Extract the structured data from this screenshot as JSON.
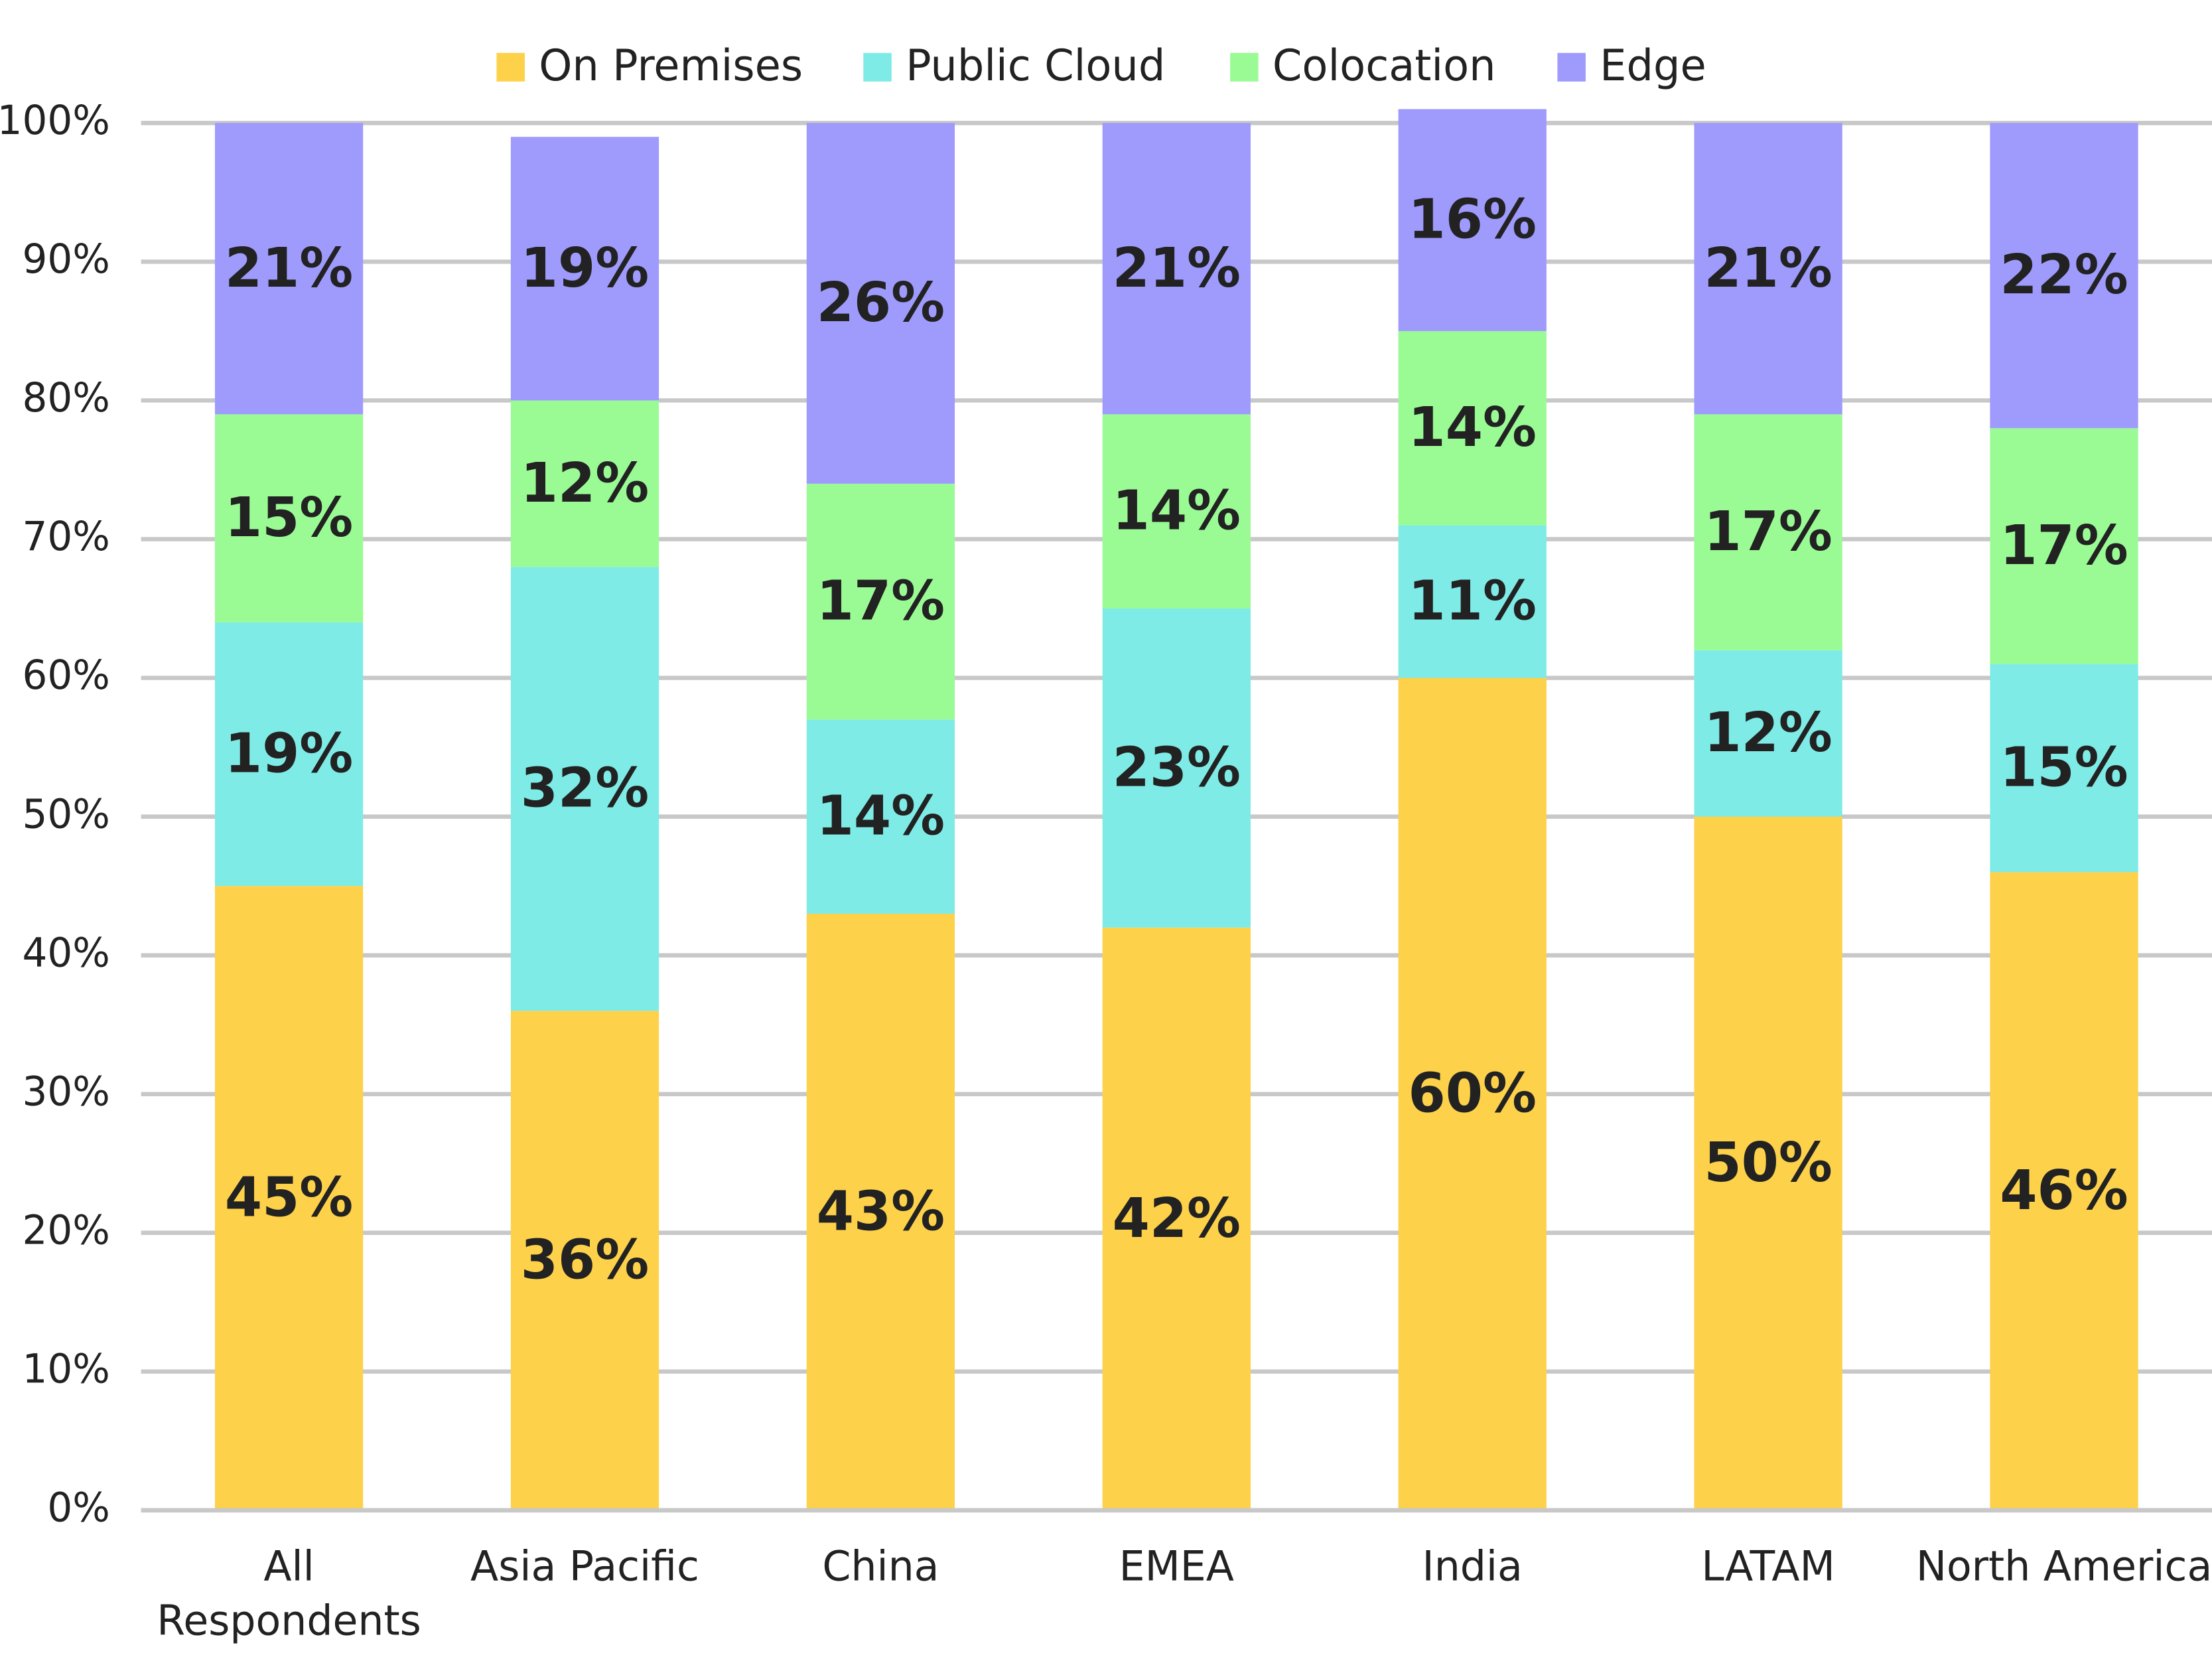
{
  "chart_data": {
    "type": "stacked_bar",
    "categories": [
      "All Respondents",
      "Asia Pacific",
      "China",
      "EMEA",
      "India",
      "LATAM",
      "North America"
    ],
    "series": [
      {
        "name": "On Premises",
        "color": "#fdd14a",
        "values": [
          45,
          36,
          43,
          42,
          60,
          50,
          46
        ],
        "value_labels": [
          "45%",
          "36%",
          "43%",
          "42%",
          "60%",
          "50%",
          "46%"
        ]
      },
      {
        "name": "Public Cloud",
        "color": "#7eebe6",
        "values": [
          19,
          32,
          14,
          23,
          11,
          12,
          15
        ],
        "value_labels": [
          "19%",
          "32%",
          "14%",
          "23%",
          "11%",
          "12%",
          "15%"
        ]
      },
      {
        "name": "Colocation",
        "color": "#9afb95",
        "values": [
          15,
          12,
          17,
          14,
          14,
          17,
          17
        ],
        "value_labels": [
          "15%",
          "12%",
          "17%",
          "14%",
          "14%",
          "17%",
          "17%"
        ]
      },
      {
        "name": "Edge",
        "color": "#9e9bfc",
        "values": [
          21,
          19,
          26,
          21,
          16,
          21,
          22
        ],
        "value_labels": [
          "21%",
          "19%",
          "26%",
          "21%",
          "16%",
          "21%",
          "22%"
        ]
      }
    ],
    "ylim": [
      0,
      100
    ],
    "yticks": [
      {
        "value": 0,
        "label": "0%"
      },
      {
        "value": 10,
        "label": "10%"
      },
      {
        "value": 20,
        "label": "20%"
      },
      {
        "value": 30,
        "label": "30%"
      },
      {
        "value": 40,
        "label": "40%"
      },
      {
        "value": 50,
        "label": "50%"
      },
      {
        "value": 60,
        "label": "60%"
      },
      {
        "value": 70,
        "label": "70%"
      },
      {
        "value": 80,
        "label": "80%"
      },
      {
        "value": 90,
        "label": "90%"
      },
      {
        "value": 100,
        "label": "100%"
      }
    ],
    "grid": true,
    "legend": "top"
  }
}
